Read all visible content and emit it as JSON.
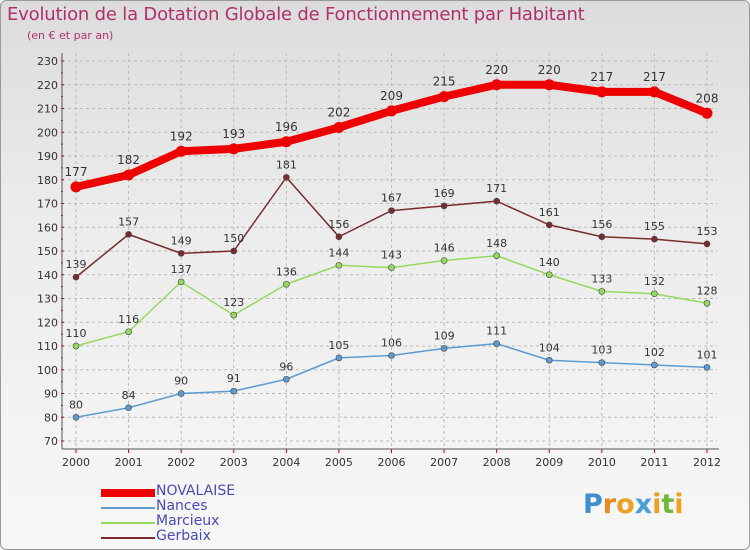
{
  "title": "Evolution de la Dotation Globale de Fonctionnement par Habitant",
  "subtitle": "(en € et par an)",
  "logo": {
    "text": "Proxiti"
  },
  "colors": {
    "title": "#b0306a",
    "grid": "#b9b9b9",
    "axis_tick": "#cc0000",
    "legend_text": "#4a4ab8"
  },
  "chart_data": {
    "type": "line",
    "x": [
      "2000",
      "2001",
      "2002",
      "2003",
      "2004",
      "2005",
      "2006",
      "2007",
      "2008",
      "2009",
      "2010",
      "2011",
      "2012"
    ],
    "ylim": [
      70,
      230
    ],
    "yticks": [
      70,
      80,
      90,
      100,
      110,
      120,
      130,
      140,
      150,
      160,
      170,
      180,
      190,
      200,
      210,
      220,
      230
    ],
    "grid": true,
    "legend_position": "bottom-left",
    "series": [
      {
        "name": "NOVALAISE",
        "color": "#ee0000",
        "values": [
          177,
          182,
          192,
          193,
          196,
          202,
          209,
          215,
          220,
          220,
          217,
          217,
          208
        ]
      },
      {
        "name": "Nances",
        "color": "#5d9bd2",
        "values": [
          80,
          84,
          90,
          91,
          96,
          105,
          106,
          109,
          111,
          104,
          103,
          102,
          101
        ]
      },
      {
        "name": "Marcieux",
        "color": "#95d95f",
        "values": [
          110,
          116,
          137,
          123,
          136,
          144,
          143,
          146,
          148,
          140,
          133,
          132,
          128
        ]
      },
      {
        "name": "Gerbaix",
        "color": "#7a2b2b",
        "values": [
          139,
          157,
          149,
          150,
          181,
          156,
          167,
          169,
          171,
          161,
          156,
          155,
          153
        ]
      }
    ]
  }
}
